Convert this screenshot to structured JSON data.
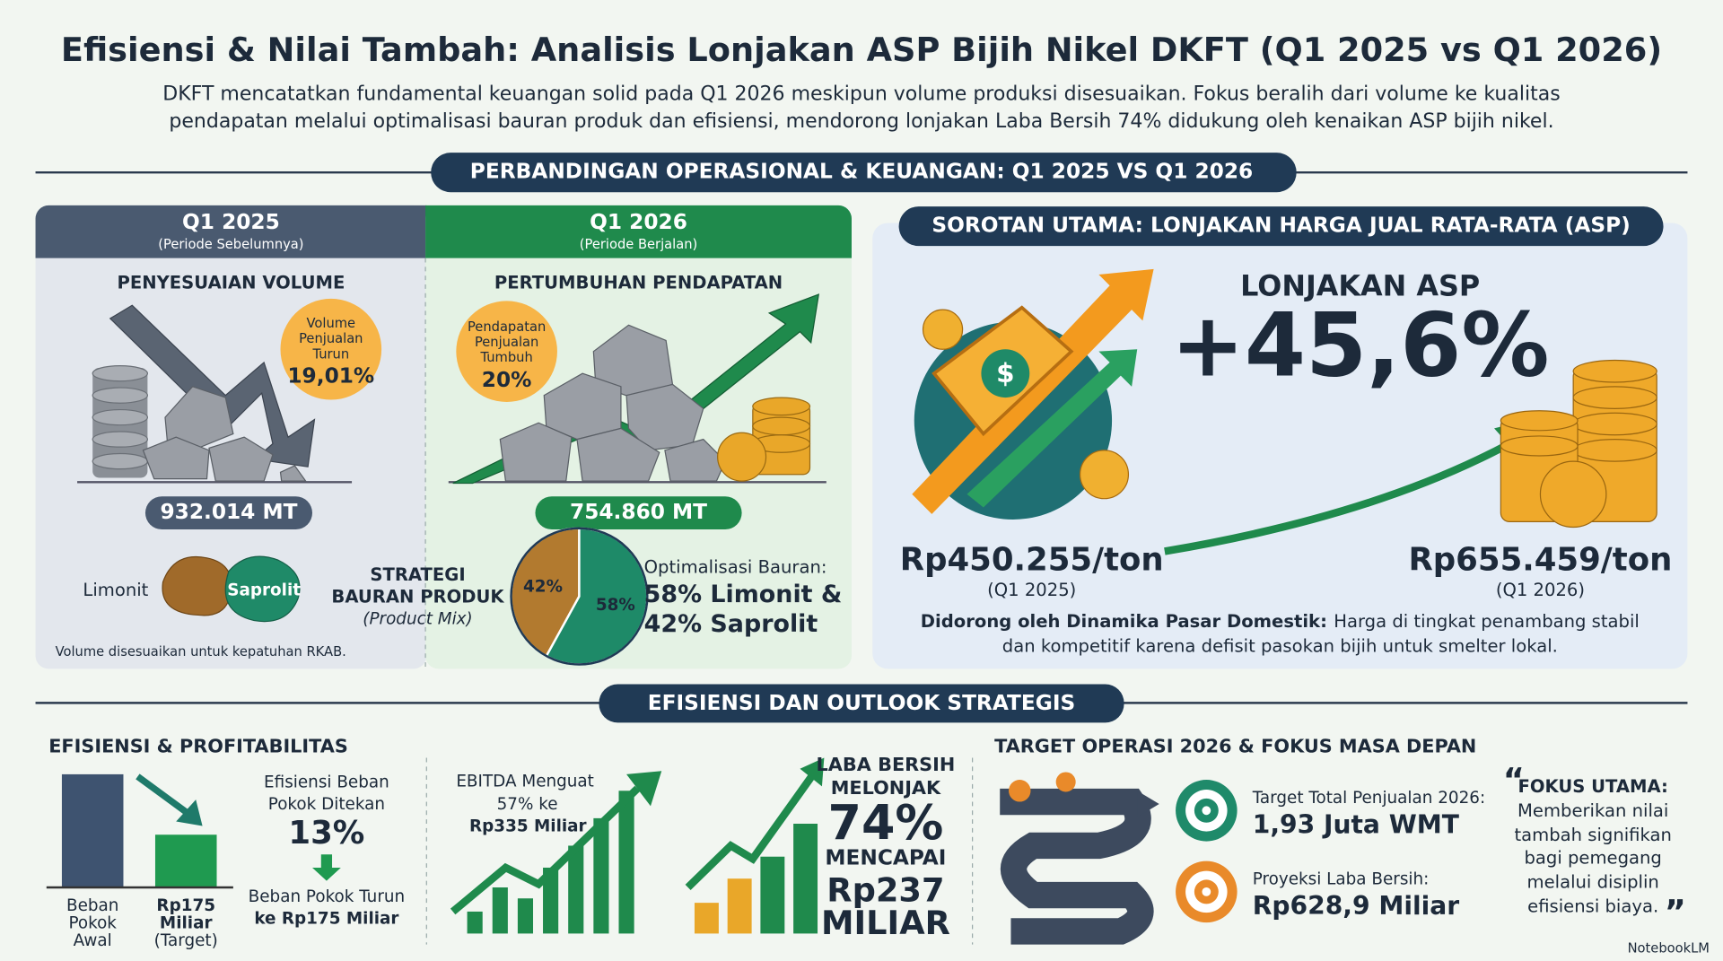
{
  "header": {
    "title": "Efisiensi & Nilai Tambah: Analisis Lonjakan ASP Bijih Nikel DKFT (Q1 2025 vs Q1 2026)",
    "subtitle_lines": [
      "DKFT mencatatkan fundamental keuangan solid pada Q1 2026 meskipun volume produksi disesuaikan. Fokus beralih dari volume ke kualitas",
      "pendapatan melalui optimalisasi bauran produk dan efisiensi, mendorong lonjakan Laba Bersih 74% didukung oleh kenaikan ASP bijih nikel."
    ]
  },
  "section1": {
    "title": "PERBANDINGAN OPERASIONAL & KEUANGAN: Q1 2025 VS Q1 2026"
  },
  "q2025": {
    "title": "Q1 2025",
    "subtitle": "(Periode Sebelumnya)",
    "heading": "PENYESUAIAN VOLUME",
    "badge_lines": [
      "Volume",
      "Penjualan",
      "Turun"
    ],
    "badge_value": "19,01%",
    "volume": "932.014 MT",
    "note": "Volume disesuaikan untuk kepatuhan RKAB."
  },
  "q2026": {
    "title": "Q1 2026",
    "subtitle": "(Periode Berjalan)",
    "heading": "PERTUMBUHAN PENDAPATAN",
    "badge_lines": [
      "Pendapatan",
      "Penjualan",
      "Tumbuh"
    ],
    "badge_value": "20%",
    "volume": "754.860 MT"
  },
  "product_mix": {
    "limonit": "Limonit",
    "saprolit": "Saprolit",
    "strategy_lines": [
      "STRATEGI",
      "BAURAN PRODUK"
    ],
    "strategy_en": "(Product Mix)",
    "slices": [
      {
        "label": "42%",
        "value": 42,
        "color": "#b27a2f"
      },
      {
        "label": "58%",
        "value": 58,
        "color": "#1e8a68"
      }
    ],
    "caption": "Optimalisasi Bauran:",
    "result_lines": [
      "58% Limonit &",
      "42% Saprolit"
    ]
  },
  "asp": {
    "title": "SOROTAN UTAMA: LONJAKAN HARGA JUAL RATA-RATA (ASP)",
    "label": "LONJAKAN ASP",
    "change": "+45,6%",
    "before": "Rp450.255/ton",
    "before_period": "(Q1 2025)",
    "after": "Rp655.459/ton",
    "after_period": "(Q1 2026)",
    "driver_bold": "Didorong oleh Dinamika Pasar Domestik:",
    "driver_lines": [
      "Harga di tingkat penambang stabil",
      "dan kompetitif karena defisit pasokan bijih untuk smelter lokal."
    ]
  },
  "section2": {
    "title": "EFISIENSI DAN OUTLOOK STRATEGIS"
  },
  "efficiency": {
    "title": "EFISIENSI & PROFITABILITAS",
    "bar1_lines": [
      "Beban",
      "Pokok",
      "Awal"
    ],
    "bar2_lines": [
      "Rp175",
      "Miliar",
      "(Target)"
    ],
    "cost_lines": [
      "Efisiensi Beban",
      "Pokok Ditekan"
    ],
    "cost_pct": "13%",
    "cost_down_lines": [
      "Beban Pokok Turun",
      "ke Rp175 Miliar"
    ],
    "ebitda_lines": [
      "EBITDA Menguat",
      "57% ke",
      "Rp335 Miliar"
    ],
    "profit_lines": [
      "LABA BERSIH",
      "MELONJAK"
    ],
    "profit_pct": "74%",
    "profit_value_lines": [
      "MENCAPAI",
      "Rp237",
      "MILIAR"
    ]
  },
  "outlook": {
    "title": "TARGET OPERASI 2026 & FOKUS MASA DEPAN",
    "target1_label": "Target Total Penjualan 2026:",
    "target1_value": "1,93 Juta WMT",
    "target2_label": "Proyeksi Laba Bersih:",
    "target2_value": "Rp628,9 Miliar",
    "focus_title": "FOKUS UTAMA:",
    "focus_lines": [
      "Memberikan nilai",
      "tambah signifikan",
      "bagi pemegang",
      "melalui disiplin",
      "efisiensi biaya."
    ]
  },
  "footer": {
    "brand": "NotebookLM"
  }
}
